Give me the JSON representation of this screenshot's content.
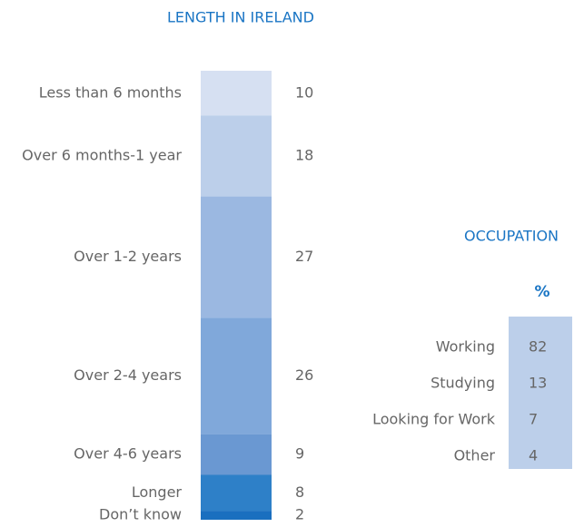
{
  "chart_data": {
    "type": "stacked_bar",
    "title": "LENGTH IN IRELAND",
    "categories": [
      "Less than 6 months",
      "Over 6 months-1 year",
      "Over 1-2 years",
      "Over 2-4 years",
      "Over 4-6 years",
      "Longer",
      "Don’t know"
    ],
    "values": [
      10,
      18,
      27,
      26,
      9,
      8,
      2
    ],
    "colors": [
      "#d6e0f2",
      "#bccfea",
      "#9bb8e1",
      "#80a8da",
      "#6a98d2",
      "#2e80c8",
      "#1a6fbf"
    ]
  },
  "table": {
    "title": "OCCUPATION",
    "header": "%",
    "rows": [
      [
        "Working",
        82
      ],
      [
        "Studying",
        13
      ],
      [
        "Looking for Work",
        7
      ],
      [
        "Other",
        4
      ]
    ]
  }
}
